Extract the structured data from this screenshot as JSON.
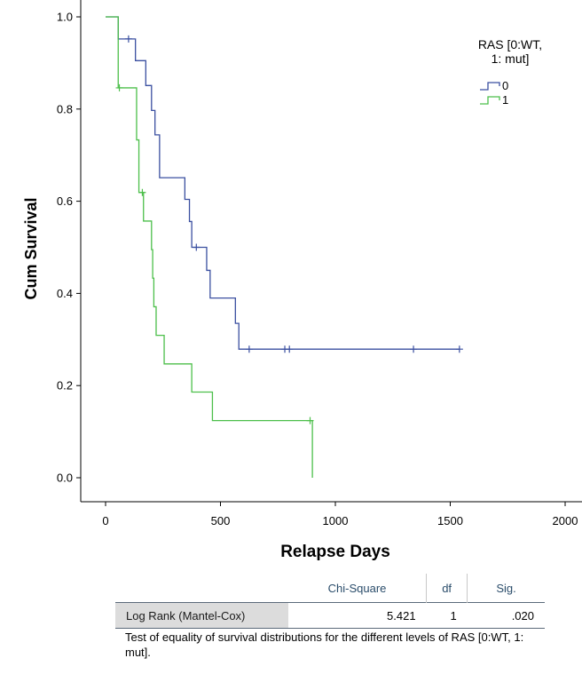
{
  "chart_data": {
    "type": "line",
    "subtype": "kaplan-meier",
    "xlabel": "Relapse Days",
    "ylabel": "Cum Survival",
    "xlim": [
      0,
      2000
    ],
    "ylim": [
      0,
      1.0
    ],
    "xticks": [
      0,
      500,
      1000,
      1500,
      2000
    ],
    "yticks": [
      0.0,
      0.2,
      0.4,
      0.6,
      0.8,
      1.0
    ],
    "grid": false,
    "legend": {
      "title": "RAS [0:WT, 1: mut]",
      "title_lines": [
        "RAS [0:WT,",
        "1: mut]"
      ],
      "position": "top-right"
    },
    "series": [
      {
        "name": "0",
        "color": "#3a4fa0",
        "steps": [
          [
            0,
            1.0
          ],
          [
            55,
            0.952
          ],
          [
            130,
            0.905
          ],
          [
            175,
            0.851
          ],
          [
            200,
            0.797
          ],
          [
            215,
            0.744
          ],
          [
            235,
            0.651
          ],
          [
            345,
            0.604
          ],
          [
            365,
            0.556
          ],
          [
            375,
            0.5
          ],
          [
            440,
            0.45
          ],
          [
            455,
            0.39
          ],
          [
            565,
            0.335
          ],
          [
            580,
            0.279
          ],
          [
            1540,
            0.279
          ]
        ],
        "censored": [
          [
            100,
            0.952
          ],
          [
            395,
            0.5
          ],
          [
            625,
            0.279
          ],
          [
            780,
            0.279
          ],
          [
            800,
            0.279
          ],
          [
            1340,
            0.279
          ],
          [
            1540,
            0.279
          ]
        ]
      },
      {
        "name": "1",
        "color": "#4cbf4a",
        "steps": [
          [
            0,
            1.0
          ],
          [
            55,
            0.846
          ],
          [
            135,
            0.733
          ],
          [
            145,
            0.619
          ],
          [
            165,
            0.557
          ],
          [
            200,
            0.495
          ],
          [
            205,
            0.433
          ],
          [
            210,
            0.371
          ],
          [
            220,
            0.309
          ],
          [
            255,
            0.247
          ],
          [
            375,
            0.186
          ],
          [
            465,
            0.124
          ],
          [
            900,
            0.0
          ]
        ],
        "censored": [
          [
            60,
            0.846
          ],
          [
            160,
            0.619
          ],
          [
            890,
            0.124
          ]
        ]
      }
    ]
  },
  "stats_table": {
    "headers": [
      "Chi-Square",
      "df",
      "Sig."
    ],
    "row_label": "Log Rank (Mantel-Cox)",
    "chi_square": "5.421",
    "df": "1",
    "sig": ".020",
    "footnote": "Test of equality of survival distributions for the different levels of RAS [0:WT, 1: mut]."
  }
}
